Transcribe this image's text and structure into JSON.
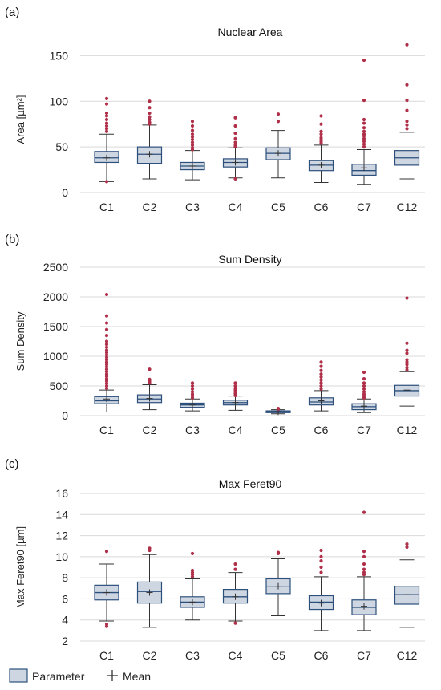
{
  "figure": {
    "legend": {
      "box_label": "Parameter",
      "mean_label": "Mean",
      "box_fill": "#cdd6e1",
      "box_stroke": "#2d4f7c",
      "outlier_color": "#b0304a"
    }
  },
  "chart_data": [
    {
      "type": "box",
      "panel_label": "(a)",
      "title": "Nuclear Area",
      "ylabel": "Area [µm²]",
      "ylim": [
        0,
        160
      ],
      "yticks": [
        0,
        50,
        100,
        150
      ],
      "grid": "horizontal",
      "categories": [
        "C1",
        "C2",
        "C3",
        "C4",
        "C5",
        "C6",
        "C7",
        "C12"
      ],
      "boxes": [
        {
          "whisker_low": 12,
          "q1": 33,
          "median": 38,
          "q3": 45,
          "whisker_high": 64,
          "mean": 38,
          "outliers": [
            12,
            67,
            70,
            73,
            76,
            80,
            84,
            87,
            97,
            103
          ]
        },
        {
          "whisker_low": 15,
          "q1": 32,
          "median": 42,
          "q3": 50,
          "whisker_high": 74,
          "mean": 42,
          "outliers": [
            75,
            77,
            80,
            83,
            87,
            93,
            100
          ]
        },
        {
          "whisker_low": 14,
          "q1": 25,
          "median": 29,
          "q3": 33,
          "whisker_high": 46,
          "mean": 29,
          "outliers": [
            47,
            49,
            52,
            55,
            58,
            61,
            64,
            68,
            73,
            78
          ]
        },
        {
          "whisker_low": 16,
          "q1": 28,
          "median": 33,
          "q3": 37,
          "whisker_high": 49,
          "mean": 33,
          "outliers": [
            15,
            50,
            52,
            55,
            59,
            65,
            73,
            82
          ]
        },
        {
          "whisker_low": 16,
          "q1": 36,
          "median": 43,
          "q3": 49,
          "whisker_high": 68,
          "mean": 43,
          "outliers": [
            78,
            86
          ]
        },
        {
          "whisker_low": 11,
          "q1": 24,
          "median": 30,
          "q3": 35,
          "whisker_high": 52,
          "mean": 30,
          "outliers": [
            54,
            56,
            58,
            60,
            64,
            67,
            75,
            84
          ]
        },
        {
          "whisker_low": 9,
          "q1": 19,
          "median": 24,
          "q3": 31,
          "whisker_high": 47,
          "mean": 27,
          "outliers": [
            50,
            53,
            56,
            59,
            62,
            64,
            67,
            71,
            76,
            80,
            101,
            145
          ]
        },
        {
          "whisker_low": 15,
          "q1": 30,
          "median": 38,
          "q3": 46,
          "whisker_high": 66,
          "mean": 40,
          "outliers": [
            70,
            74,
            78,
            90,
            101,
            118,
            162
          ]
        }
      ]
    },
    {
      "type": "box",
      "panel_label": "(b)",
      "title": "Sum Density",
      "ylabel": "Sum Density",
      "ylim": [
        0,
        2500
      ],
      "yticks": [
        0,
        500,
        1000,
        1500,
        2000,
        2500
      ],
      "grid": "horizontal",
      "categories": [
        "C1",
        "C2",
        "C3",
        "C4",
        "C5",
        "C6",
        "C7",
        "C12"
      ],
      "boxes": [
        {
          "whisker_low": 60,
          "q1": 200,
          "median": 250,
          "q3": 320,
          "whisker_high": 430,
          "mean": 280,
          "outliers": [
            460,
            500,
            540,
            580,
            620,
            660,
            700,
            740,
            780,
            820,
            860,
            900,
            940,
            980,
            1020,
            1060,
            1100,
            1150,
            1200,
            1250,
            1350,
            1450,
            1560,
            1680,
            2040
          ]
        },
        {
          "whisker_low": 100,
          "q1": 220,
          "median": 280,
          "q3": 350,
          "whisker_high": 520,
          "mean": 290,
          "outliers": [
            550,
            580,
            610,
            780
          ]
        },
        {
          "whisker_low": 80,
          "q1": 140,
          "median": 180,
          "q3": 210,
          "whisker_high": 280,
          "mean": 180,
          "outliers": [
            300,
            330,
            360,
            400,
            450,
            500,
            550
          ]
        },
        {
          "whisker_low": 90,
          "q1": 180,
          "median": 220,
          "q3": 260,
          "whisker_high": 330,
          "mean": 220,
          "outliers": [
            340,
            370,
            400,
            430,
            460,
            500,
            550
          ]
        },
        {
          "whisker_low": 30,
          "q1": 50,
          "median": 65,
          "q3": 80,
          "whisker_high": 100,
          "mean": 65,
          "outliers": [
            110,
            120
          ]
        },
        {
          "whisker_low": 80,
          "q1": 180,
          "median": 230,
          "q3": 300,
          "whisker_high": 420,
          "mean": 250,
          "outliers": [
            450,
            500,
            550,
            600,
            650,
            700,
            760,
            830,
            900
          ]
        },
        {
          "whisker_low": 50,
          "q1": 100,
          "median": 150,
          "q3": 200,
          "whisker_high": 280,
          "mean": 160,
          "outliers": [
            300,
            330,
            360,
            400,
            450,
            500,
            550,
            620,
            730
          ]
        },
        {
          "whisker_low": 160,
          "q1": 330,
          "median": 420,
          "q3": 510,
          "whisker_high": 740,
          "mean": 430,
          "outliers": [
            770,
            810,
            860,
            900,
            940,
            1050,
            1100,
            1220,
            1980
          ]
        }
      ]
    },
    {
      "type": "box",
      "panel_label": "(c)",
      "title": "Max Feret90",
      "ylabel": "Max Feret90 [µm]",
      "ylim": [
        2,
        16
      ],
      "yticks": [
        2,
        4,
        6,
        8,
        10,
        12,
        14,
        16
      ],
      "grid": "horizontal",
      "categories": [
        "C1",
        "C2",
        "C3",
        "C4",
        "C5",
        "C6",
        "C7",
        "C12"
      ],
      "boxes": [
        {
          "whisker_low": 3.9,
          "q1": 5.9,
          "median": 6.6,
          "q3": 7.3,
          "whisker_high": 9.3,
          "mean": 6.6,
          "outliers": [
            3.4,
            3.6,
            10.5
          ]
        },
        {
          "whisker_low": 3.3,
          "q1": 5.6,
          "median": 6.7,
          "q3": 7.6,
          "whisker_high": 10.2,
          "mean": 6.6,
          "outliers": [
            10.6,
            10.8
          ]
        },
        {
          "whisker_low": 4.0,
          "q1": 5.2,
          "median": 5.7,
          "q3": 6.2,
          "whisker_high": 7.9,
          "mean": 5.7,
          "outliers": [
            8.1,
            8.3,
            8.5,
            8.7,
            10.3
          ]
        },
        {
          "whisker_low": 3.9,
          "q1": 5.6,
          "median": 6.2,
          "q3": 6.9,
          "whisker_high": 8.5,
          "mean": 6.2,
          "outliers": [
            3.7,
            8.8,
            9.3
          ]
        },
        {
          "whisker_low": 4.4,
          "q1": 6.5,
          "median": 7.2,
          "q3": 7.9,
          "whisker_high": 9.8,
          "mean": 7.2,
          "outliers": [
            10.3,
            10.4
          ]
        },
        {
          "whisker_low": 3.0,
          "q1": 5.0,
          "median": 5.7,
          "q3": 6.3,
          "whisker_high": 8.1,
          "mean": 5.6,
          "outliers": [
            8.5,
            9.0,
            9.6,
            10.0,
            10.6
          ]
        },
        {
          "whisker_low": 3.0,
          "q1": 4.5,
          "median": 5.2,
          "q3": 5.9,
          "whisker_high": 8.1,
          "mean": 5.3,
          "outliers": [
            8.3,
            8.5,
            8.8,
            9.3,
            10.0,
            10.5,
            14.2
          ]
        },
        {
          "whisker_low": 3.3,
          "q1": 5.5,
          "median": 6.4,
          "q3": 7.2,
          "whisker_high": 9.7,
          "mean": 6.4,
          "outliers": [
            10.9,
            11.2
          ]
        }
      ]
    }
  ]
}
